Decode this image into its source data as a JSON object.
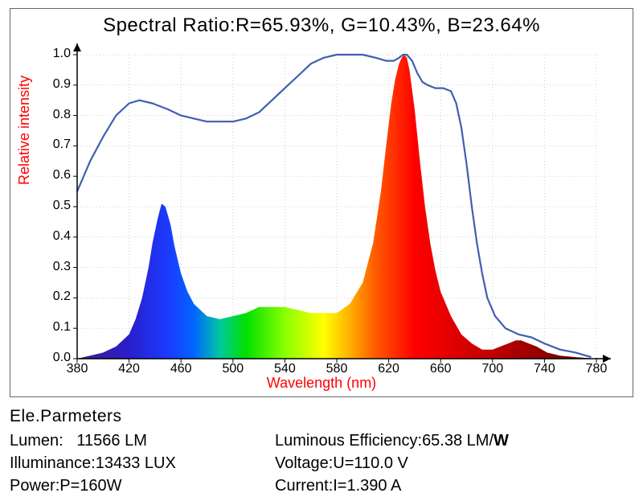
{
  "title": "Spectral Ratio:R=65.93%, G=10.43%, B=23.64%",
  "chart": {
    "type": "area+line",
    "xlabel": "Wavelength (nm)",
    "ylabel": "Relative intensity",
    "xlim": [
      380,
      780
    ],
    "ylim": [
      0,
      1.0
    ],
    "xtick_start": 380,
    "xtick_step": 40,
    "xtick_end": 780,
    "ytick_start": 0,
    "ytick_step": 0.1,
    "ytick_end": 1.0,
    "background_color": "#ffffff",
    "grid_color": "#d0d0d0",
    "grid_dash": "1 3",
    "axis_color": "#000000",
    "line_color": "#3f5fb0",
    "line_width": 2.2,
    "label_color": "#ff0000",
    "title_fontsize": 24,
    "tick_fontsize": 16,
    "label_fontsize": 18,
    "spectrum_stops": [
      {
        "nm": 380,
        "color": "#3b1e8f"
      },
      {
        "nm": 420,
        "color": "#2b1ecb"
      },
      {
        "nm": 450,
        "color": "#1b3bff"
      },
      {
        "nm": 470,
        "color": "#0066ff"
      },
      {
        "nm": 490,
        "color": "#00c8a0"
      },
      {
        "nm": 510,
        "color": "#00e000"
      },
      {
        "nm": 540,
        "color": "#8aff00"
      },
      {
        "nm": 570,
        "color": "#ffff00"
      },
      {
        "nm": 590,
        "color": "#ffb000"
      },
      {
        "nm": 610,
        "color": "#ff5a00"
      },
      {
        "nm": 640,
        "color": "#ff0000"
      },
      {
        "nm": 700,
        "color": "#c00000"
      },
      {
        "nm": 780,
        "color": "#5a0000"
      }
    ],
    "area_series": [
      [
        380,
        0.0
      ],
      [
        390,
        0.01
      ],
      [
        400,
        0.02
      ],
      [
        410,
        0.04
      ],
      [
        420,
        0.08
      ],
      [
        425,
        0.13
      ],
      [
        430,
        0.2
      ],
      [
        435,
        0.3
      ],
      [
        438,
        0.38
      ],
      [
        442,
        0.46
      ],
      [
        445,
        0.51
      ],
      [
        448,
        0.5
      ],
      [
        452,
        0.44
      ],
      [
        455,
        0.37
      ],
      [
        460,
        0.28
      ],
      [
        465,
        0.22
      ],
      [
        470,
        0.18
      ],
      [
        480,
        0.14
      ],
      [
        490,
        0.13
      ],
      [
        500,
        0.14
      ],
      [
        510,
        0.15
      ],
      [
        520,
        0.17
      ],
      [
        530,
        0.17
      ],
      [
        540,
        0.17
      ],
      [
        550,
        0.16
      ],
      [
        560,
        0.15
      ],
      [
        570,
        0.15
      ],
      [
        580,
        0.15
      ],
      [
        590,
        0.18
      ],
      [
        600,
        0.25
      ],
      [
        608,
        0.38
      ],
      [
        614,
        0.55
      ],
      [
        618,
        0.7
      ],
      [
        622,
        0.84
      ],
      [
        625,
        0.92
      ],
      [
        628,
        0.97
      ],
      [
        630,
        0.99
      ],
      [
        632,
        1.0
      ],
      [
        634,
        0.99
      ],
      [
        636,
        0.95
      ],
      [
        640,
        0.82
      ],
      [
        644,
        0.65
      ],
      [
        648,
        0.5
      ],
      [
        652,
        0.38
      ],
      [
        656,
        0.29
      ],
      [
        660,
        0.22
      ],
      [
        668,
        0.14
      ],
      [
        676,
        0.08
      ],
      [
        684,
        0.05
      ],
      [
        692,
        0.03
      ],
      [
        700,
        0.03
      ],
      [
        706,
        0.04
      ],
      [
        712,
        0.05
      ],
      [
        718,
        0.06
      ],
      [
        722,
        0.06
      ],
      [
        728,
        0.05
      ],
      [
        734,
        0.04
      ],
      [
        742,
        0.02
      ],
      [
        752,
        0.01
      ],
      [
        764,
        0.005
      ],
      [
        780,
        0.0
      ]
    ],
    "line_series": [
      [
        380,
        0.55
      ],
      [
        390,
        0.65
      ],
      [
        400,
        0.73
      ],
      [
        410,
        0.8
      ],
      [
        420,
        0.84
      ],
      [
        428,
        0.85
      ],
      [
        438,
        0.84
      ],
      [
        450,
        0.82
      ],
      [
        460,
        0.8
      ],
      [
        470,
        0.79
      ],
      [
        480,
        0.78
      ],
      [
        490,
        0.78
      ],
      [
        500,
        0.78
      ],
      [
        510,
        0.79
      ],
      [
        520,
        0.81
      ],
      [
        530,
        0.85
      ],
      [
        540,
        0.89
      ],
      [
        550,
        0.93
      ],
      [
        560,
        0.97
      ],
      [
        570,
        0.99
      ],
      [
        580,
        1.0
      ],
      [
        590,
        1.0
      ],
      [
        600,
        1.0
      ],
      [
        610,
        0.99
      ],
      [
        618,
        0.98
      ],
      [
        624,
        0.98
      ],
      [
        628,
        0.99
      ],
      [
        631,
        1.0
      ],
      [
        634,
        1.0
      ],
      [
        638,
        0.98
      ],
      [
        642,
        0.94
      ],
      [
        646,
        0.91
      ],
      [
        650,
        0.9
      ],
      [
        656,
        0.89
      ],
      [
        662,
        0.89
      ],
      [
        668,
        0.88
      ],
      [
        672,
        0.84
      ],
      [
        676,
        0.76
      ],
      [
        680,
        0.64
      ],
      [
        684,
        0.5
      ],
      [
        688,
        0.38
      ],
      [
        692,
        0.28
      ],
      [
        696,
        0.2
      ],
      [
        702,
        0.14
      ],
      [
        710,
        0.1
      ],
      [
        720,
        0.08
      ],
      [
        730,
        0.07
      ],
      [
        740,
        0.05
      ],
      [
        752,
        0.03
      ],
      [
        764,
        0.02
      ],
      [
        776,
        0.005
      ]
    ]
  },
  "params": {
    "header": "Ele.Parmeters",
    "lumen_label": "Lumen:",
    "lumen_value": "11566 LM",
    "eff_label": "Luminous Efficiency:",
    "eff_value_a": "65.38 LM/",
    "eff_value_b": "W",
    "illum_label": "Illuminance:",
    "illum_value": "13433 LUX",
    "volt_label": "Voltage:",
    "volt_value": "U=110.0 V",
    "power_label": "Power:",
    "power_value": "P=160W",
    "current_label": "Current:",
    "current_value": "I=1.390 A"
  }
}
